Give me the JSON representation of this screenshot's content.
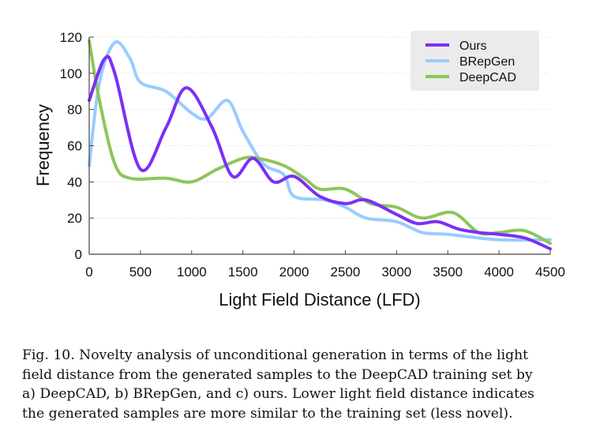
{
  "chart_data": {
    "type": "line",
    "title": "",
    "xlabel": "Light Field Distance (LFD)",
    "ylabel": "Frequency",
    "xlim": [
      0,
      4500
    ],
    "ylim": [
      0,
      120
    ],
    "xticks": [
      "0",
      "500",
      "1000",
      "1500",
      "2000",
      "2500",
      "3000",
      "3500",
      "4000",
      "4500"
    ],
    "yticks": [
      "0",
      "20",
      "40",
      "60",
      "80",
      "100",
      "120"
    ],
    "grid": true,
    "legend_position": "top-right",
    "series": [
      {
        "name": "Ours",
        "color": "#7b2ff7",
        "x": [
          0,
          150,
          250,
          500,
          750,
          950,
          1200,
          1400,
          1600,
          1800,
          2000,
          2250,
          2500,
          2700,
          3000,
          3200,
          3400,
          3600,
          3800,
          4000,
          4250,
          4500
        ],
        "y": [
          85,
          108,
          100,
          47,
          70,
          92,
          70,
          43,
          53,
          40,
          43,
          32,
          28,
          30,
          22,
          17,
          18,
          14,
          12,
          11,
          9,
          3
        ]
      },
      {
        "name": "BRepGen",
        "color": "#99ccff",
        "x": [
          0,
          100,
          250,
          400,
          500,
          750,
          1000,
          1150,
          1350,
          1500,
          1700,
          1900,
          2000,
          2300,
          2500,
          2700,
          3000,
          3250,
          3500,
          4000,
          4500
        ],
        "y": [
          49,
          95,
          117,
          108,
          95,
          90,
          78,
          75,
          85,
          68,
          50,
          44,
          32,
          30,
          26,
          20,
          18,
          12,
          11,
          8,
          8
        ]
      },
      {
        "name": "DeepCAD",
        "color": "#8ec55a",
        "x": [
          0,
          100,
          250,
          400,
          750,
          1000,
          1250,
          1500,
          1650,
          1900,
          2100,
          2250,
          2500,
          2750,
          3000,
          3250,
          3550,
          3800,
          4000,
          4250,
          4500
        ],
        "y": [
          118,
          85,
          50,
          42,
          42,
          40,
          47,
          53,
          53,
          49,
          42,
          36,
          36,
          28,
          26,
          20,
          23,
          12,
          12,
          13,
          6
        ]
      }
    ]
  },
  "caption": {
    "lines": [
      "Fig. 10.  Novelty analysis of unconditional generation in terms of the light",
      "field distance from the generated samples to the DeepCAD training set by",
      "a) DeepCAD, b) BRepGen, and c) ours. Lower light field distance indicates",
      "the generated samples are more similar to the training set (less novel)."
    ]
  }
}
